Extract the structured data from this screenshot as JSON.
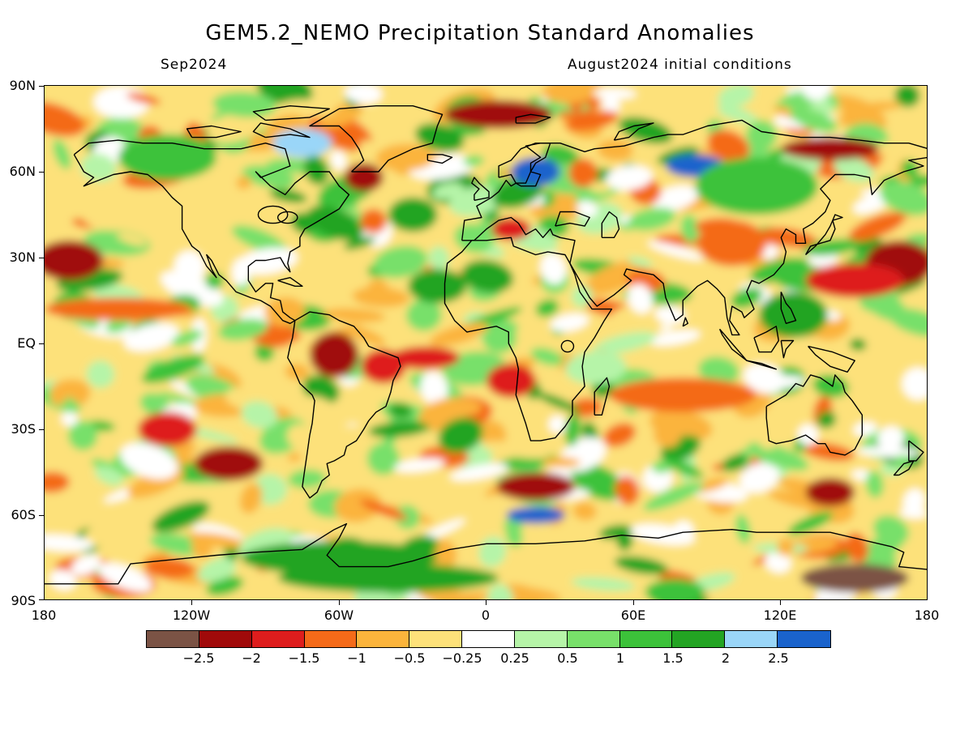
{
  "title": "GEM5.2_NEMO Precipitation Standard Anomalies",
  "subtitle_left": "Sep2024",
  "subtitle_right": "August2024 initial conditions",
  "y_axis_labels": [
    "90N",
    "60N",
    "30N",
    "EQ",
    "30S",
    "60S",
    "90S"
  ],
  "x_axis_labels": [
    "180",
    "120W",
    "60W",
    "0",
    "60E",
    "120E",
    "180"
  ],
  "colorbar": {
    "colors": [
      "#7b5345",
      "#a00a0a",
      "#de1d1d",
      "#f46a19",
      "#fbb43c",
      "#fde17a",
      "#ffffff",
      "#b6f4a8",
      "#78e06a",
      "#3cc23a",
      "#23a423",
      "#9ad6f8",
      "#1a63cc"
    ],
    "labels": [
      "-2.5",
      "-2",
      "-1.5",
      "-1",
      "-0.5",
      "-0.25",
      "0.25",
      "0.5",
      "1",
      "1.5",
      "2",
      "2.5"
    ]
  },
  "map": {
    "projection": "equirectangular",
    "lon_range": [
      -180,
      180
    ],
    "lat_range": [
      -90,
      90
    ],
    "field": "precipitation standard anomaly",
    "anomaly_regions": [
      {
        "lat": 29,
        "lon": -170,
        "level": -2,
        "rlon": 14,
        "rlat": 7
      },
      {
        "lat": 28,
        "lon": 168,
        "level": -2,
        "rlon": 14,
        "rlat": 8
      },
      {
        "lat": 22,
        "lon": 150,
        "level": -1.5,
        "rlon": 20,
        "rlat": 6
      },
      {
        "lat": -4,
        "lon": -62,
        "level": -2,
        "rlon": 10,
        "rlat": 8
      },
      {
        "lat": -8,
        "lon": -42,
        "level": -1.5,
        "rlon": 9,
        "rlat": 6
      },
      {
        "lat": -5,
        "lon": -25,
        "level": -1.5,
        "rlon": 14,
        "rlat": 4
      },
      {
        "lat": -13,
        "lon": 10,
        "level": -1.5,
        "rlon": 10,
        "rlat": 6
      },
      {
        "lat": -42,
        "lon": -105,
        "level": -2,
        "rlon": 14,
        "rlat": 6
      },
      {
        "lat": -30,
        "lon": -130,
        "level": -1.5,
        "rlon": 12,
        "rlat": 6
      },
      {
        "lat": -50,
        "lon": 20,
        "level": -2,
        "rlon": 16,
        "rlat": 5
      },
      {
        "lat": -52,
        "lon": 140,
        "level": -2,
        "rlon": 10,
        "rlat": 5
      },
      {
        "lat": -82,
        "lon": 150,
        "level": -2.5,
        "rlon": 22,
        "rlat": 5
      },
      {
        "lat": 80,
        "lon": 5,
        "level": -2,
        "rlon": 22,
        "rlat": 5
      },
      {
        "lat": 68,
        "lon": 140,
        "level": -2,
        "rlon": 20,
        "rlat": 4
      },
      {
        "lat": 58,
        "lon": -50,
        "level": -2,
        "rlon": 8,
        "rlat": 5
      },
      {
        "lat": 40,
        "lon": 10,
        "level": -1.5,
        "rlon": 8,
        "rlat": 4
      },
      {
        "lat": 12,
        "lon": -150,
        "level": -1,
        "rlon": 30,
        "rlat": 4
      },
      {
        "lat": -18,
        "lon": 80,
        "level": -1,
        "rlon": 30,
        "rlat": 6
      },
      {
        "lat": 35,
        "lon": 100,
        "level": -1,
        "rlon": 14,
        "rlat": 8
      },
      {
        "lat": 60,
        "lon": 20,
        "level": 2.5,
        "rlon": 10,
        "rlat": 5
      },
      {
        "lat": 62,
        "lon": 85,
        "level": 2.5,
        "rlon": 12,
        "rlat": 4
      },
      {
        "lat": 70,
        "lon": -75,
        "level": 2,
        "rlon": 12,
        "rlat": 5
      },
      {
        "lat": -60,
        "lon": 20,
        "level": 2.5,
        "rlon": 12,
        "rlat": 3
      },
      {
        "lat": 45,
        "lon": -30,
        "level": 1.5,
        "rlon": 10,
        "rlat": 6
      },
      {
        "lat": 20,
        "lon": -20,
        "level": 1.5,
        "rlon": 12,
        "rlat": 6
      },
      {
        "lat": 10,
        "lon": 125,
        "level": 1.5,
        "rlon": 14,
        "rlat": 8
      },
      {
        "lat": -75,
        "lon": -60,
        "level": 1.5,
        "rlon": 40,
        "rlat": 6
      },
      {
        "lat": -82,
        "lon": -40,
        "level": 1.5,
        "rlon": 45,
        "rlat": 5
      },
      {
        "lat": 55,
        "lon": 110,
        "level": 1,
        "rlon": 25,
        "rlat": 10
      },
      {
        "lat": 65,
        "lon": -130,
        "level": 1,
        "rlon": 20,
        "rlat": 8
      }
    ]
  }
}
